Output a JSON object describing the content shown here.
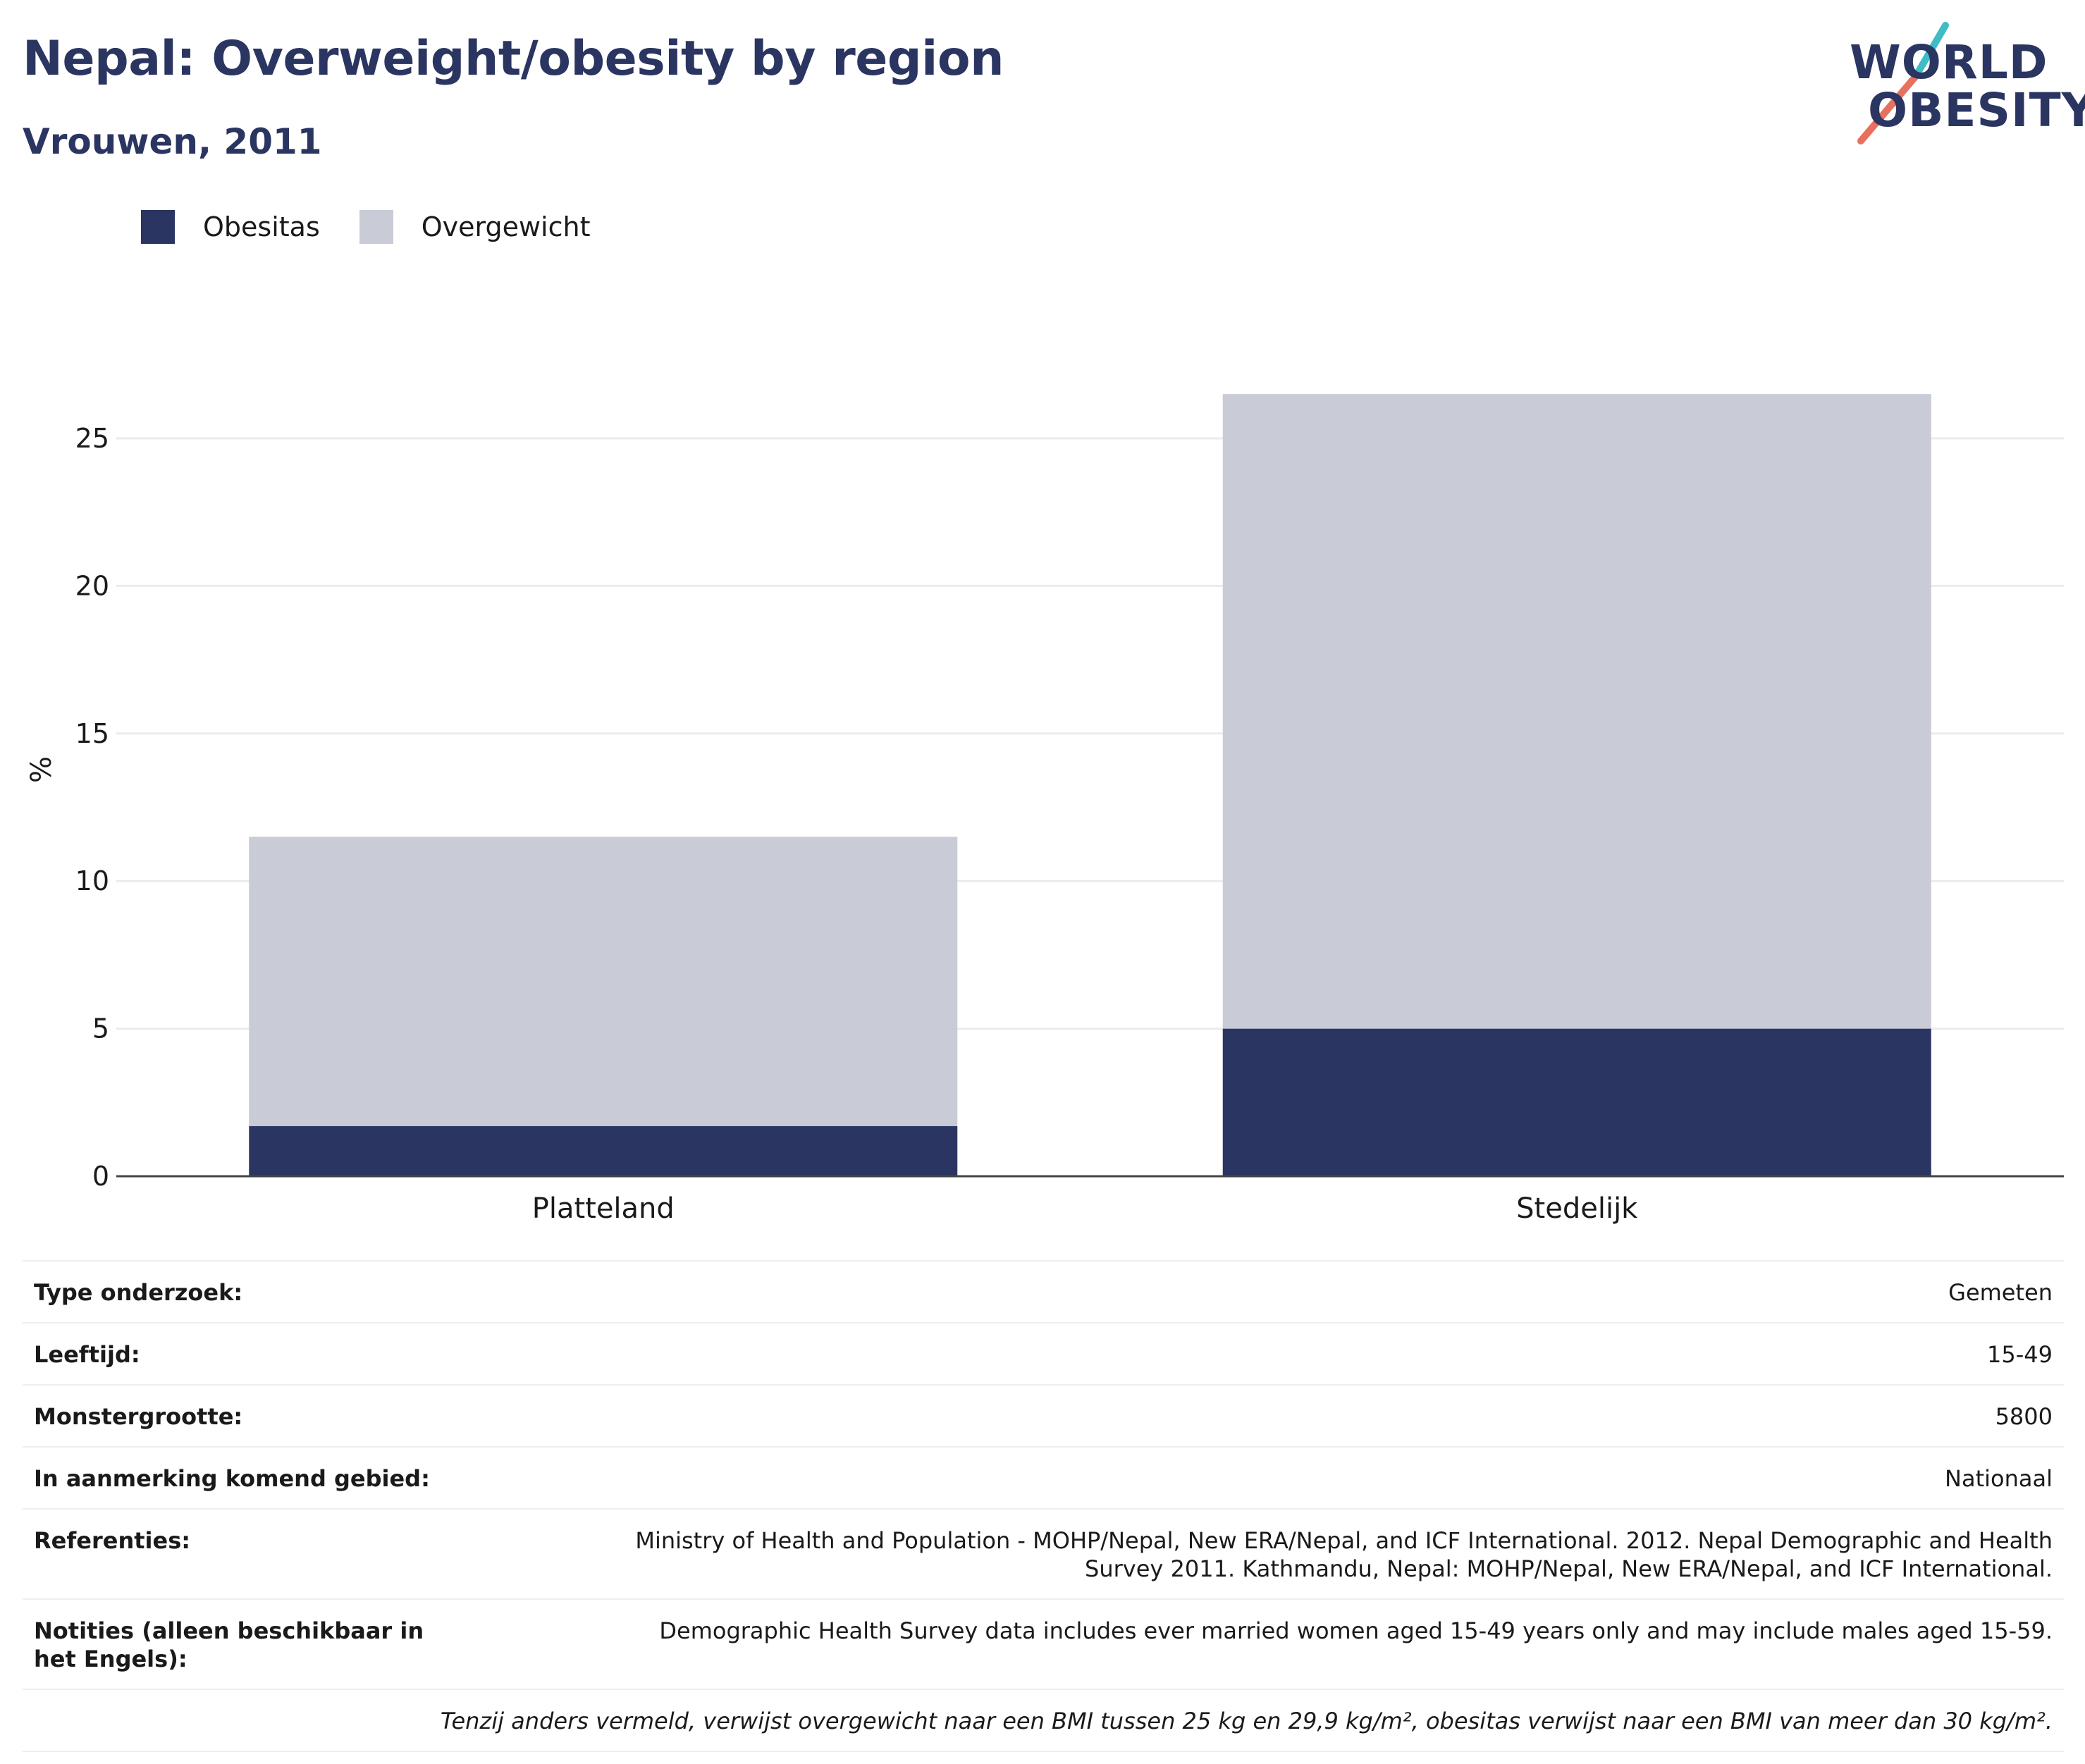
{
  "header": {
    "title": "Nepal: Overweight/obesity by region",
    "subtitle": "Vrouwen, 2011"
  },
  "logo": {
    "line1": "WORLD",
    "line2": "OBESITY",
    "colors": {
      "text": "#2b3561",
      "slash_top": "#3fbcc4",
      "slash_bottom": "#e8705f"
    }
  },
  "legend": [
    {
      "label": "Obesitas",
      "color": "#2b3561"
    },
    {
      "label": "Overgewicht",
      "color": "#c9ccd7"
    }
  ],
  "chart_data": {
    "type": "bar",
    "stacked": true,
    "categories": [
      "Platteland",
      "Stedelijk"
    ],
    "series": [
      {
        "name": "Obesitas",
        "values": [
          1.7,
          5.0
        ],
        "color": "#2b3561"
      },
      {
        "name": "Overgewicht",
        "values": [
          9.8,
          21.5
        ],
        "color": "#c9ccd7"
      }
    ],
    "ylabel": "%",
    "ylim": [
      0,
      28
    ],
    "yticks": [
      0,
      5,
      10,
      15,
      20,
      25
    ],
    "grid": true,
    "legend_position": "top-left"
  },
  "info": [
    {
      "label": "Type onderzoek:",
      "value": "Gemeten"
    },
    {
      "label": "Leeftijd:",
      "value": "15-49"
    },
    {
      "label": "Monstergrootte:",
      "value": "5800"
    },
    {
      "label": "In aanmerking komend gebied:",
      "value": "Nationaal"
    },
    {
      "label": "Referenties:",
      "value": "Ministry of Health and Population - MOHP/Nepal, New ERA/Nepal, and ICF International. 2012. Nepal Demographic and Health Survey 2011. Kathmandu, Nepal: MOHP/Nepal, New ERA/Nepal, and ICF International."
    },
    {
      "label": "Notities (alleen beschikbaar in het Engels):",
      "value": "Demographic Health Survey data includes ever married women aged 15-49 years only and may include males aged 15-59."
    }
  ],
  "footnote": "Tenzij anders vermeld, verwijst overgewicht naar een BMI tussen 25 kg en 29,9 kg/m², obesitas verwijst naar een BMI van meer dan 30 kg/m²."
}
